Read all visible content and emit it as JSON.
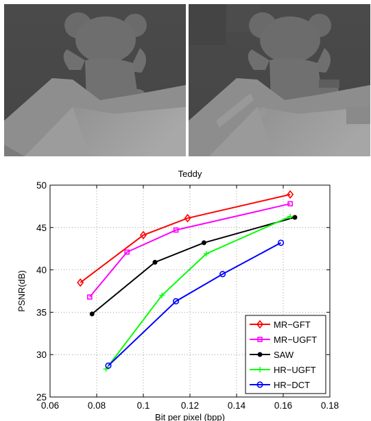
{
  "images": {
    "left": {
      "icon": "teddy-depth-map-original"
    },
    "right": {
      "icon": "teddy-depth-map-reconstructed"
    }
  },
  "chart_data": {
    "type": "line",
    "title": "Teddy",
    "xlabel": "Bit per pixel (bpp)",
    "ylabel": "PSNR(dB)",
    "xlim": [
      0.06,
      0.18
    ],
    "ylim": [
      25,
      50
    ],
    "xticks": [
      0.06,
      0.08,
      0.1,
      0.12,
      0.14,
      0.16,
      0.18
    ],
    "xtick_labels": [
      "0.06",
      "0.08",
      "0.1",
      "0.12",
      "0.14",
      "0.16",
      "0.18"
    ],
    "yticks": [
      25,
      30,
      35,
      40,
      45,
      50
    ],
    "ytick_labels": [
      "25",
      "30",
      "35",
      "40",
      "45",
      "50"
    ],
    "grid": true,
    "legend_position": "bottom-right",
    "series": [
      {
        "name": "MR−GFT",
        "color": "#ff0000",
        "marker": "diamond",
        "x": [
          0.073,
          0.1,
          0.119,
          0.163
        ],
        "y": [
          38.5,
          44.1,
          46.1,
          48.9
        ]
      },
      {
        "name": "MR−UGFT",
        "color": "#ff00ff",
        "marker": "square",
        "x": [
          0.077,
          0.093,
          0.114,
          0.163
        ],
        "y": [
          36.8,
          42.1,
          44.7,
          47.8
        ]
      },
      {
        "name": "SAW",
        "color": "#000000",
        "marker": "dot",
        "x": [
          0.078,
          0.105,
          0.126,
          0.165
        ],
        "y": [
          34.8,
          40.9,
          43.2,
          46.2
        ]
      },
      {
        "name": "HR−UGFT",
        "color": "#00ff00",
        "marker": "plus",
        "x": [
          0.084,
          0.108,
          0.127,
          0.163
        ],
        "y": [
          28.3,
          37.0,
          41.9,
          46.3
        ]
      },
      {
        "name": "HR−DCT",
        "color": "#0000ff",
        "marker": "circle",
        "x": [
          0.085,
          0.114,
          0.134,
          0.159
        ],
        "y": [
          28.7,
          36.3,
          39.5,
          43.2
        ]
      }
    ]
  }
}
